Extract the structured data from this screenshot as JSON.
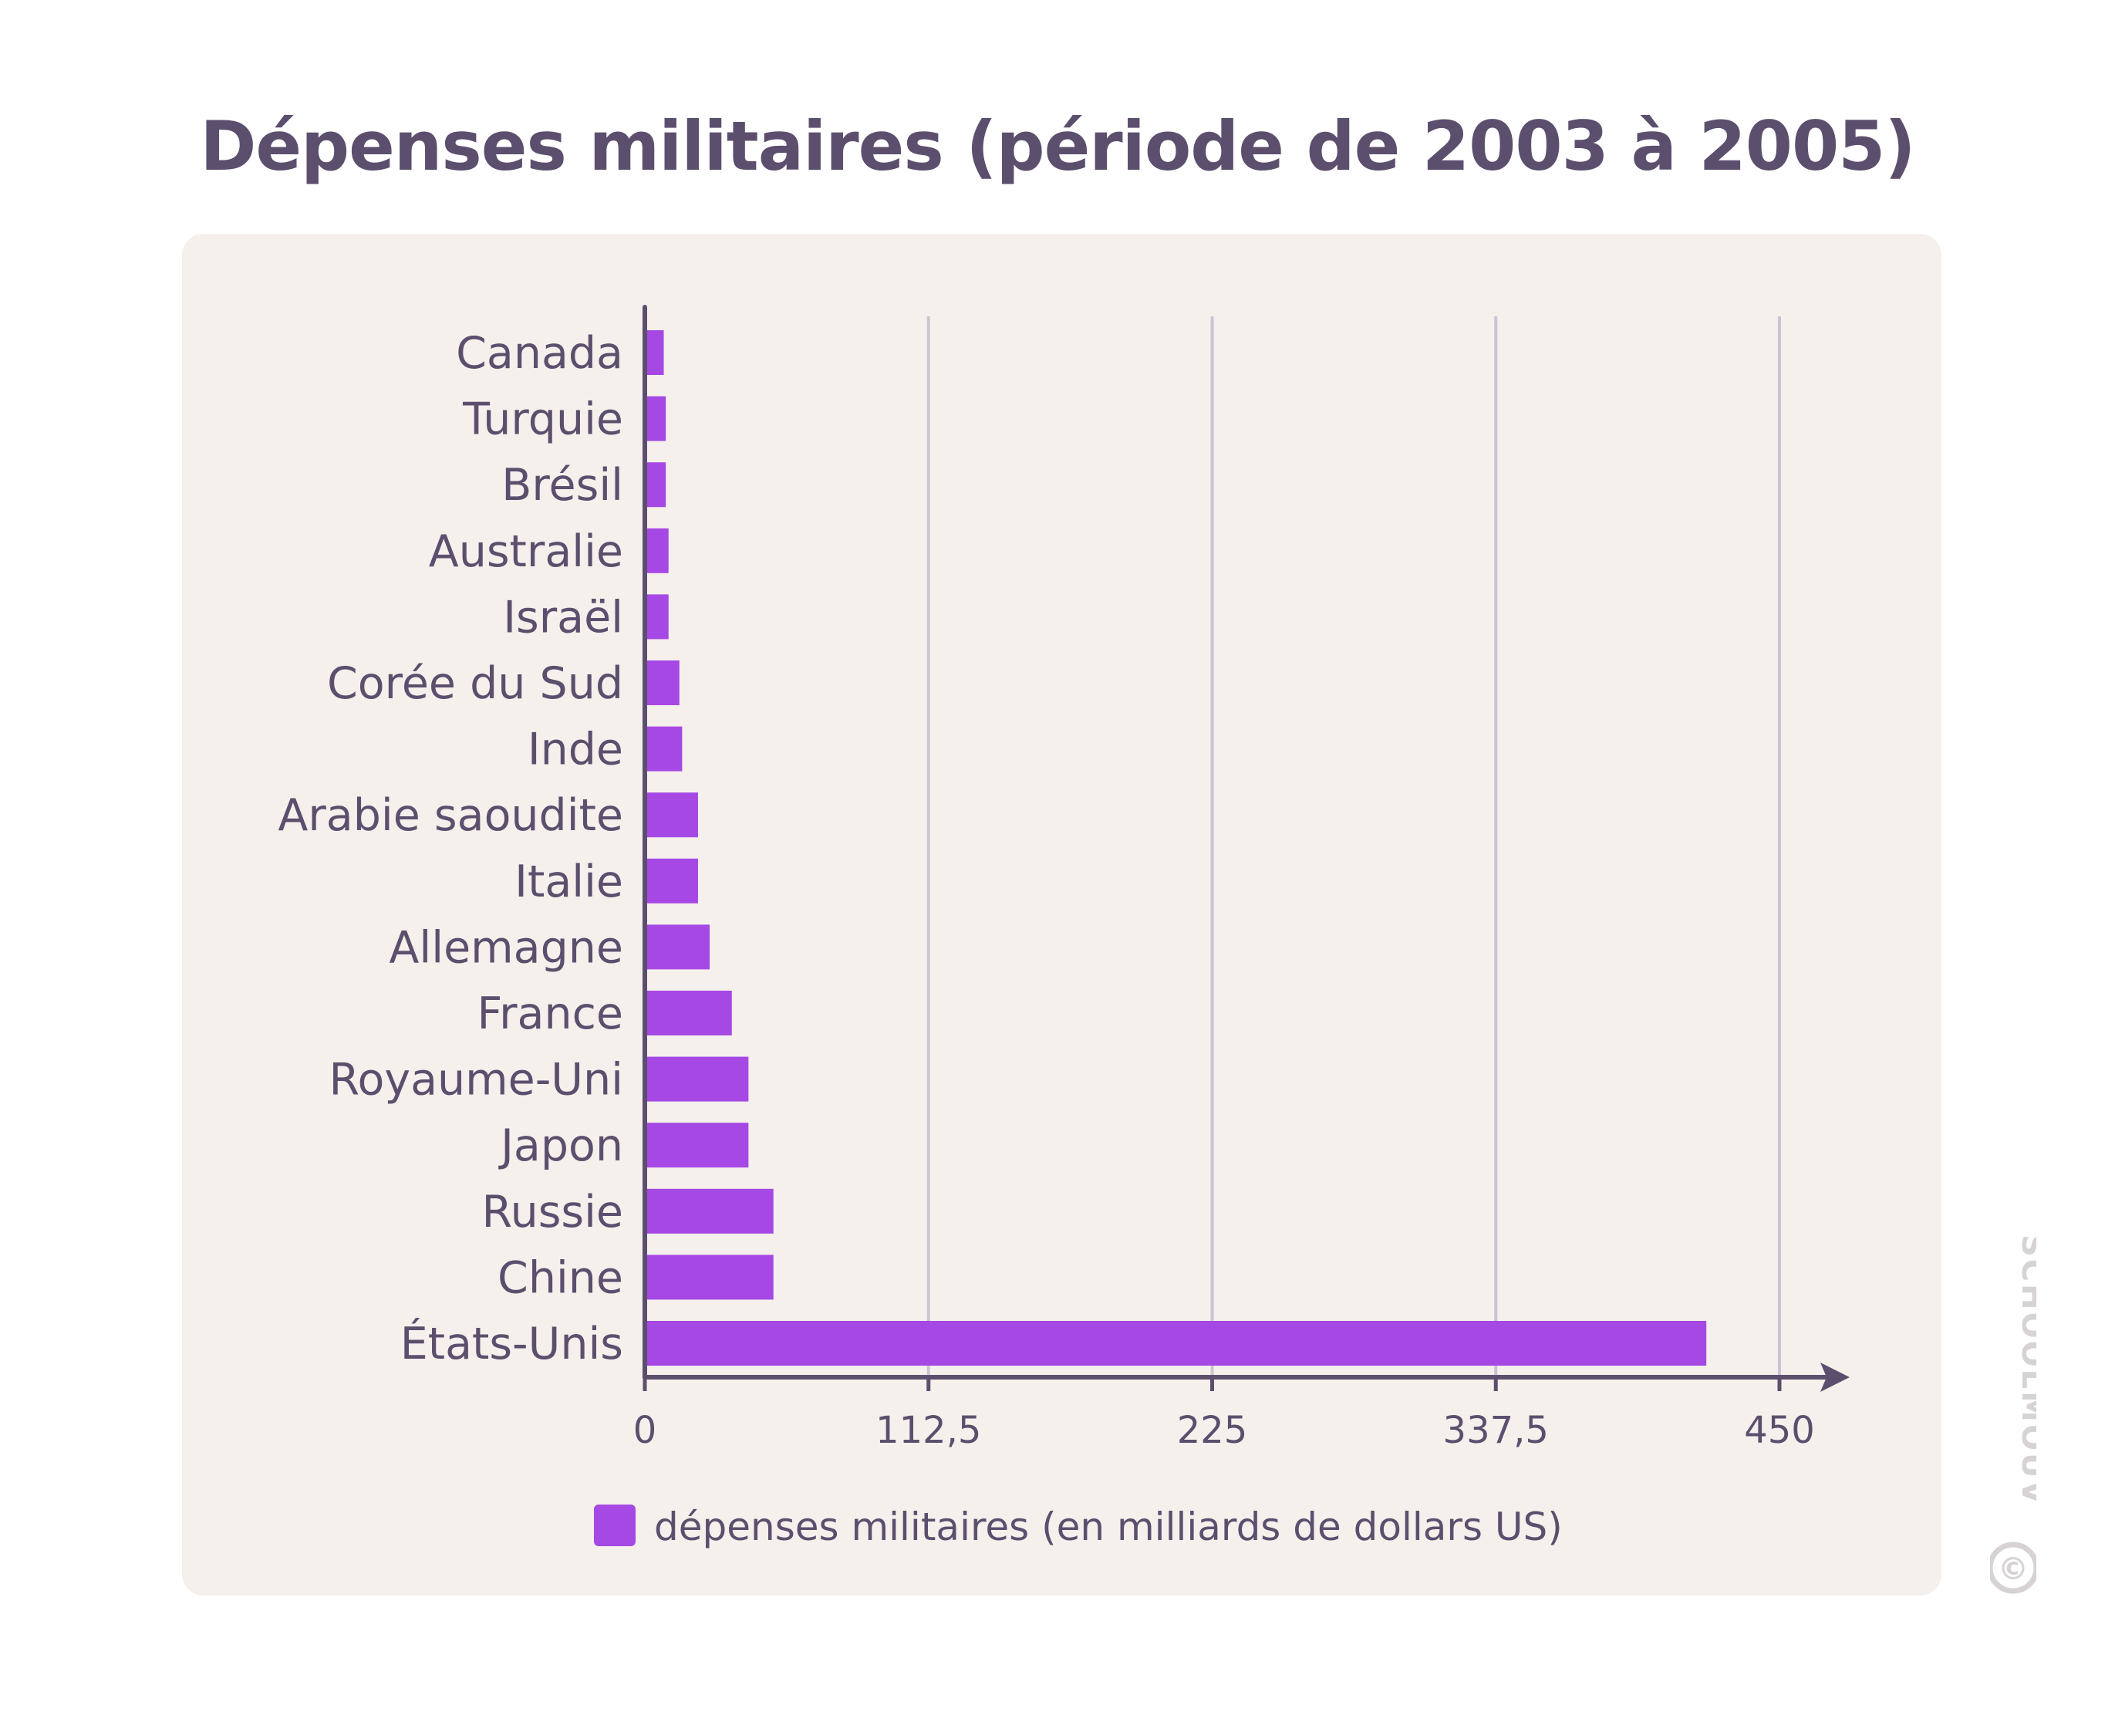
{
  "chart_data": {
    "type": "bar",
    "orientation": "horizontal",
    "title": "Dépenses militaires (période de 2003 à 2005)",
    "categories": [
      "Canada",
      "Turquie",
      "Brésil",
      "Australie",
      "Israël",
      "Corée du Sud",
      "Inde",
      "Arabie saoudite",
      "Italie",
      "Allemagne",
      "France",
      "Royaume-Uni",
      "Japon",
      "Russie",
      "Chine",
      "États-Unis"
    ],
    "series": [
      {
        "name": "dépenses militaires (en milliards de dollars US)",
        "values": [
          7.5,
          8.3,
          8.3,
          9.4,
          9.4,
          13.7,
          14.8,
          21.1,
          21.1,
          25.7,
          34.5,
          41.1,
          41.1,
          51,
          51,
          421
        ]
      }
    ],
    "xlim": [
      0,
      450
    ],
    "xticks": [
      "0",
      "112,5",
      "225",
      "337,5",
      "450"
    ],
    "grid": "vertical",
    "legend_position": "bottom",
    "bar_color": "#a648e4",
    "axis_color": "#5c4f6e",
    "grid_color": "#cdc3d4"
  },
  "watermark": {
    "text": "SCHOOLMOUV",
    "symbol": "©"
  }
}
